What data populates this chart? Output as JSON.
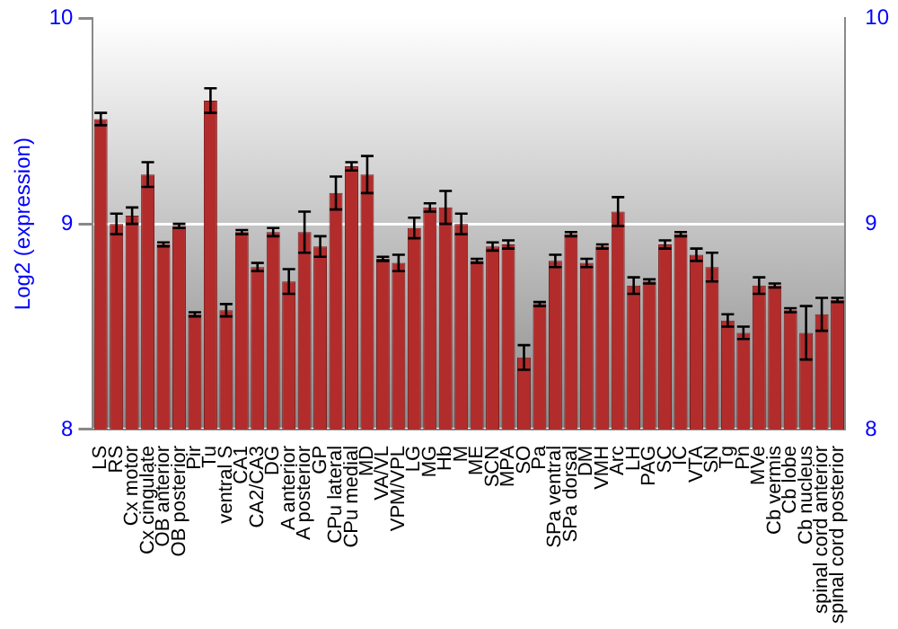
{
  "chart_data": {
    "type": "bar",
    "ylabel": "Log2 (expression)",
    "categories": [
      "LS",
      "RS",
      "Cx motor",
      "Cx cingulate",
      "OB anterior",
      "OB posterior",
      "Pir",
      "Tu",
      "ventral S",
      "CA1",
      "CA2/CA3",
      "DG",
      "A anterior",
      "A posterior",
      "GP",
      "CPu lateral",
      "CPu medial",
      "MD",
      "VA/VL",
      "VPM/VPL",
      "LG",
      "MG",
      "Hb",
      "M",
      "ME",
      "SCN",
      "MPA",
      "SO",
      "Pa",
      "SPa ventral",
      "SPa dorsal",
      "DM",
      "VMH",
      "Arc",
      "LH",
      "PAG",
      "SC",
      "IC",
      "VTA",
      "SN",
      "Tg",
      "Pn",
      "MVe",
      "Cb vermis",
      "Cb lobe",
      "Cb nucleus",
      "spinal cord anterior",
      "spinal cord posterior"
    ],
    "values": [
      9.51,
      9.0,
      9.04,
      9.24,
      8.9,
      8.99,
      8.56,
      9.6,
      8.58,
      8.96,
      8.79,
      8.96,
      8.72,
      8.96,
      8.89,
      9.15,
      9.28,
      9.24,
      8.83,
      8.81,
      8.98,
      9.08,
      9.08,
      9.0,
      8.82,
      8.89,
      8.9,
      8.35,
      8.61,
      8.82,
      8.95,
      8.81,
      8.89,
      9.06,
      8.7,
      8.72,
      8.9,
      8.95,
      8.85,
      8.79,
      8.53,
      8.47,
      8.7,
      8.7,
      8.58,
      8.47,
      8.56,
      8.63
    ],
    "errors": [
      0.03,
      0.05,
      0.04,
      0.06,
      0.01,
      0.01,
      0.01,
      0.06,
      0.03,
      0.01,
      0.02,
      0.02,
      0.06,
      0.1,
      0.05,
      0.08,
      0.02,
      0.09,
      0.01,
      0.04,
      0.05,
      0.02,
      0.08,
      0.05,
      0.01,
      0.02,
      0.02,
      0.06,
      0.01,
      0.03,
      0.01,
      0.02,
      0.01,
      0.07,
      0.04,
      0.01,
      0.02,
      0.01,
      0.03,
      0.07,
      0.03,
      0.03,
      0.04,
      0.01,
      0.01,
      0.13,
      0.08,
      0.01
    ],
    "color": "#b22c2c",
    "ylim": [
      8,
      10
    ],
    "yticks": [
      8,
      9,
      10
    ],
    "y2lim": [
      8,
      10
    ],
    "y2ticks": [
      8,
      9,
      10
    ],
    "grid": "y"
  }
}
